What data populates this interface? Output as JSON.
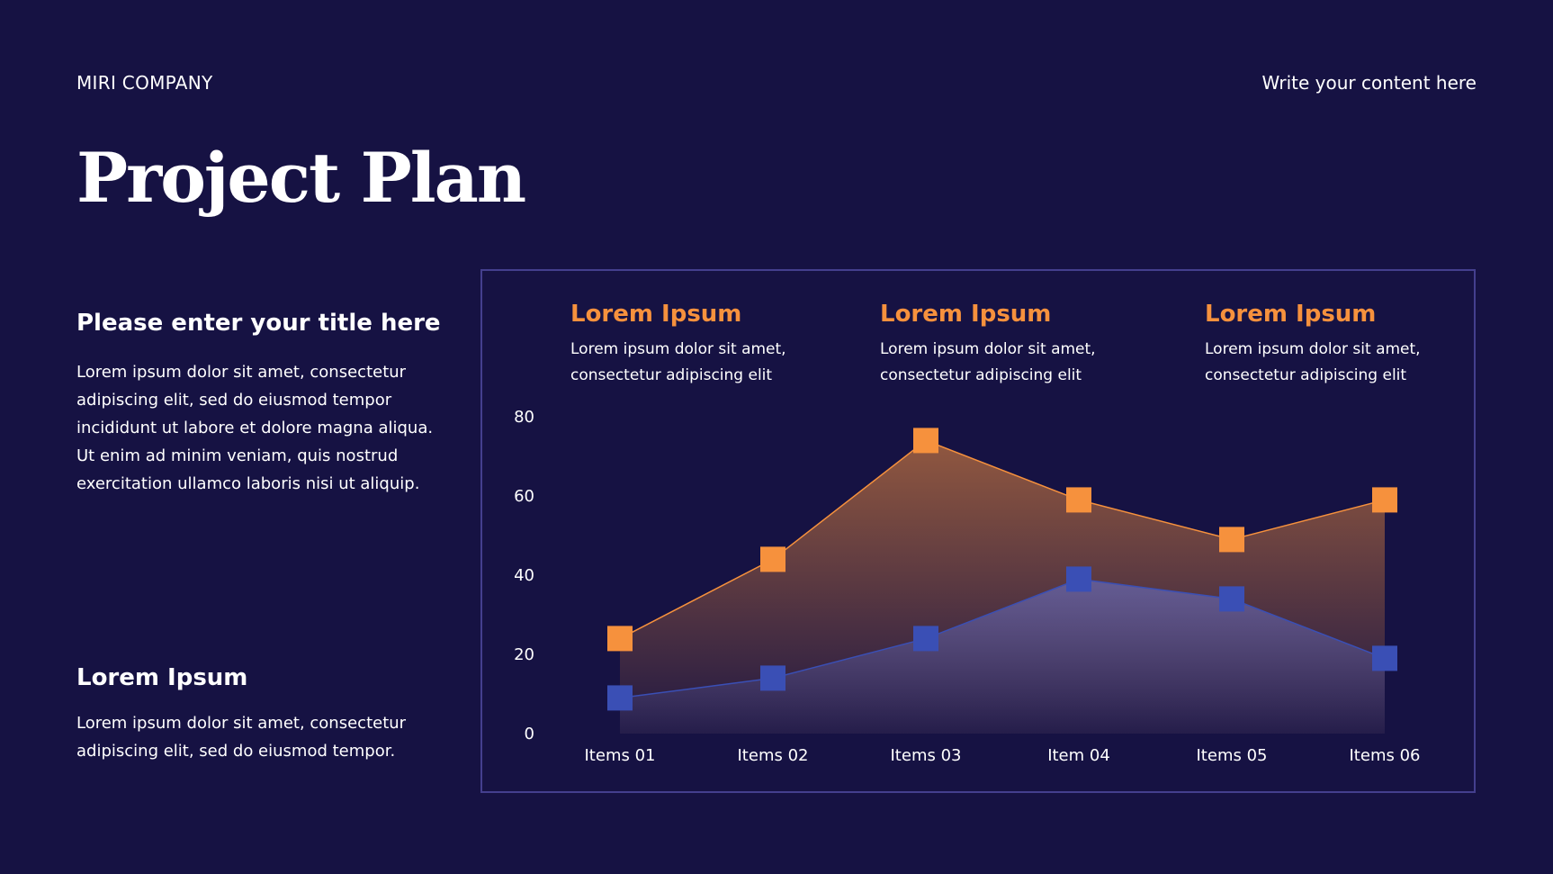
{
  "header": {
    "company": "MIRI COMPANY",
    "tagline": "Write your content here"
  },
  "page_title": "Project Plan",
  "left": {
    "title": "Please enter your title here",
    "text": "Lorem ipsum dolor sit amet, consectetur adipiscing elit, sed do eiusmod tempor incididunt ut labore et dolore magna aliqua. Ut enim ad minim veniam, quis nostrud exercitation ullamco laboris nisi ut aliquip.",
    "title2": "Lorem Ipsum",
    "text2": "Lorem ipsum dolor sit amet, consectetur adipiscing elit, sed do eiusmod tempor."
  },
  "annotations": [
    {
      "title": "Lorem Ipsum",
      "text": "Lorem ipsum dolor sit amet, consectetur adipiscing elit"
    },
    {
      "title": "Lorem Ipsum",
      "text": "Lorem ipsum dolor sit amet, consectetur adipiscing elit"
    },
    {
      "title": "Lorem Ipsum",
      "text": "Lorem ipsum dolor sit amet, consectetur adipiscing elit"
    }
  ],
  "colors": {
    "background": "#161243",
    "accent_orange": "#f6913d",
    "accent_blue": "#3a4fb5",
    "panel_border": "#443f8e"
  },
  "chart_data": {
    "type": "area",
    "categories": [
      "Items 01",
      "Items 02",
      "Items 03",
      "Item 04",
      "Items 05",
      "Items 06"
    ],
    "series": [
      {
        "color": "#f6913d",
        "values": [
          24,
          44,
          74,
          59,
          49,
          59
        ]
      },
      {
        "color": "#3a4fb5",
        "values": [
          9,
          14,
          24,
          39,
          34,
          19
        ]
      }
    ],
    "yticks": [
      0,
      20,
      40,
      60,
      80
    ],
    "ylim": [
      0,
      80
    ],
    "grid": false,
    "legend": "none",
    "markers": "square"
  }
}
